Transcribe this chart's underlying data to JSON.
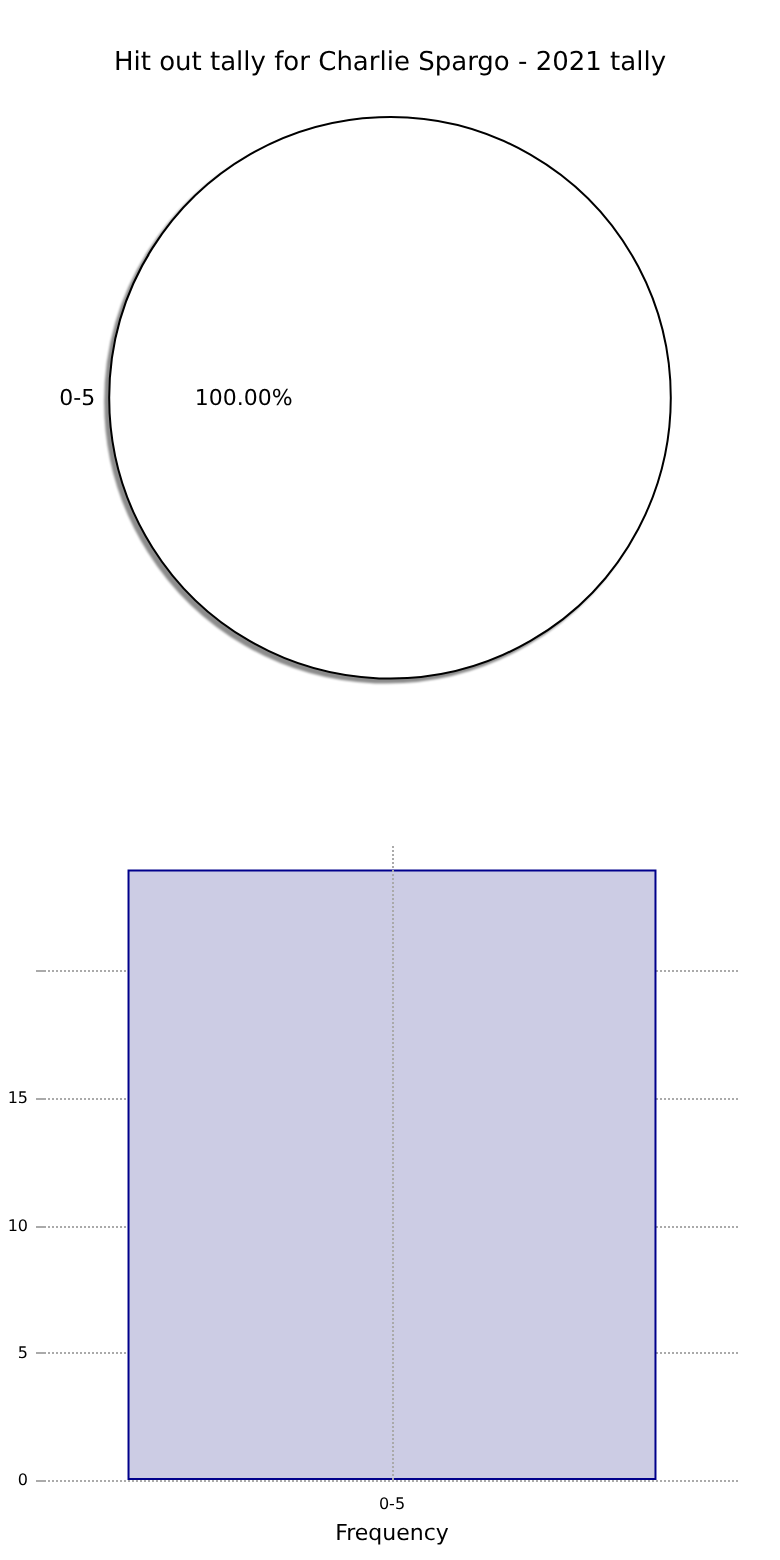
{
  "chart_data": [
    {
      "type": "pie",
      "title": "Hit out tally for Charlie Spargo - 2021 tally",
      "categories": [
        "0-5"
      ],
      "values": [
        100
      ],
      "colors": [
        "#ffffff"
      ],
      "value_labels": [
        "100.00%"
      ]
    },
    {
      "type": "bar",
      "xlabel": "Frequency",
      "categories": [
        "0-5"
      ],
      "values": [
        24
      ],
      "color": "#cccce4",
      "ylim": [
        0,
        25
      ],
      "yticks": [
        0,
        5,
        10,
        15,
        {
          "value": 20,
          "label": null
        }
      ],
      "grid": true
    }
  ]
}
